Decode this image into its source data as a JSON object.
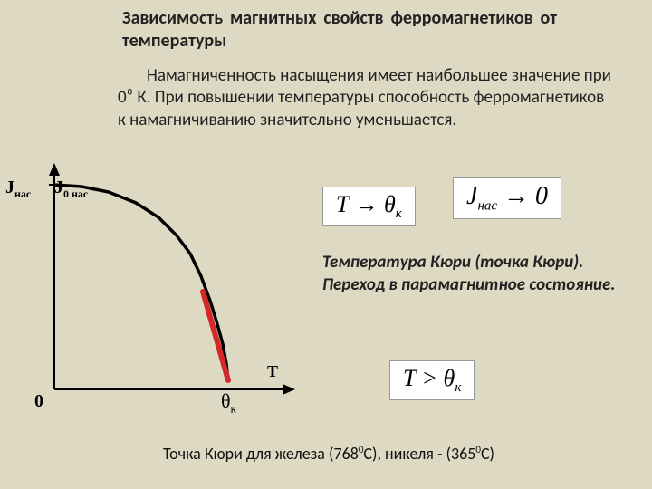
{
  "title": "Зависимость магнитных свойств ферромагнетиков от температуры",
  "paragraph": "Намагниченность насыщения имеет наибольшее значение при 0⁰ К. При повышении температуры способность ферромагнетиков к намагничиванию значительно уменьшается.",
  "chart": {
    "type": "line",
    "y_axis_label_html": "J<sub>нас</sub>",
    "j0_label_html": "J<sub>0 нас</sub>",
    "x_axis_label": "T",
    "origin_label": "0",
    "theta_label_html": "θ<sub>к</sub>",
    "curve_color": "#000000",
    "curve_width": 3.5,
    "red_line_color": "#d62828",
    "red_line_width": 6,
    "axis_color": "#000000",
    "axis_width": 2,
    "background_color": "#ded9c3",
    "arrow_size": 9,
    "x_range": [
      0,
      280
    ],
    "y_range": [
      0,
      230
    ],
    "j0_tick_y": 24,
    "curve_points": [
      [
        0,
        24
      ],
      [
        30,
        26
      ],
      [
        60,
        32
      ],
      [
        90,
        44
      ],
      [
        115,
        60
      ],
      [
        135,
        80
      ],
      [
        150,
        100
      ],
      [
        162,
        125
      ],
      [
        172,
        152
      ],
      [
        180,
        178
      ],
      [
        186,
        200
      ],
      [
        190,
        222
      ],
      [
        192,
        240
      ]
    ],
    "red_line": {
      "x1": 192,
      "y1": 240,
      "x2": 164,
      "y2": 142
    }
  },
  "formulas": {
    "f1_html": "T → θ<sub>к</sub>",
    "f2_html": "J<sub>нас</sub> → 0",
    "f3_html": "T &gt; θ<sub>к</sub>"
  },
  "curie_text": "Температура Кюри (точка Кюри). Переход в парамагнитное состояние.",
  "curie_note_html": "Точка Кюри для железа (768<sup class='deg'>0</sup>С), никеля - (365<sup class='deg'>0</sup>С)"
}
